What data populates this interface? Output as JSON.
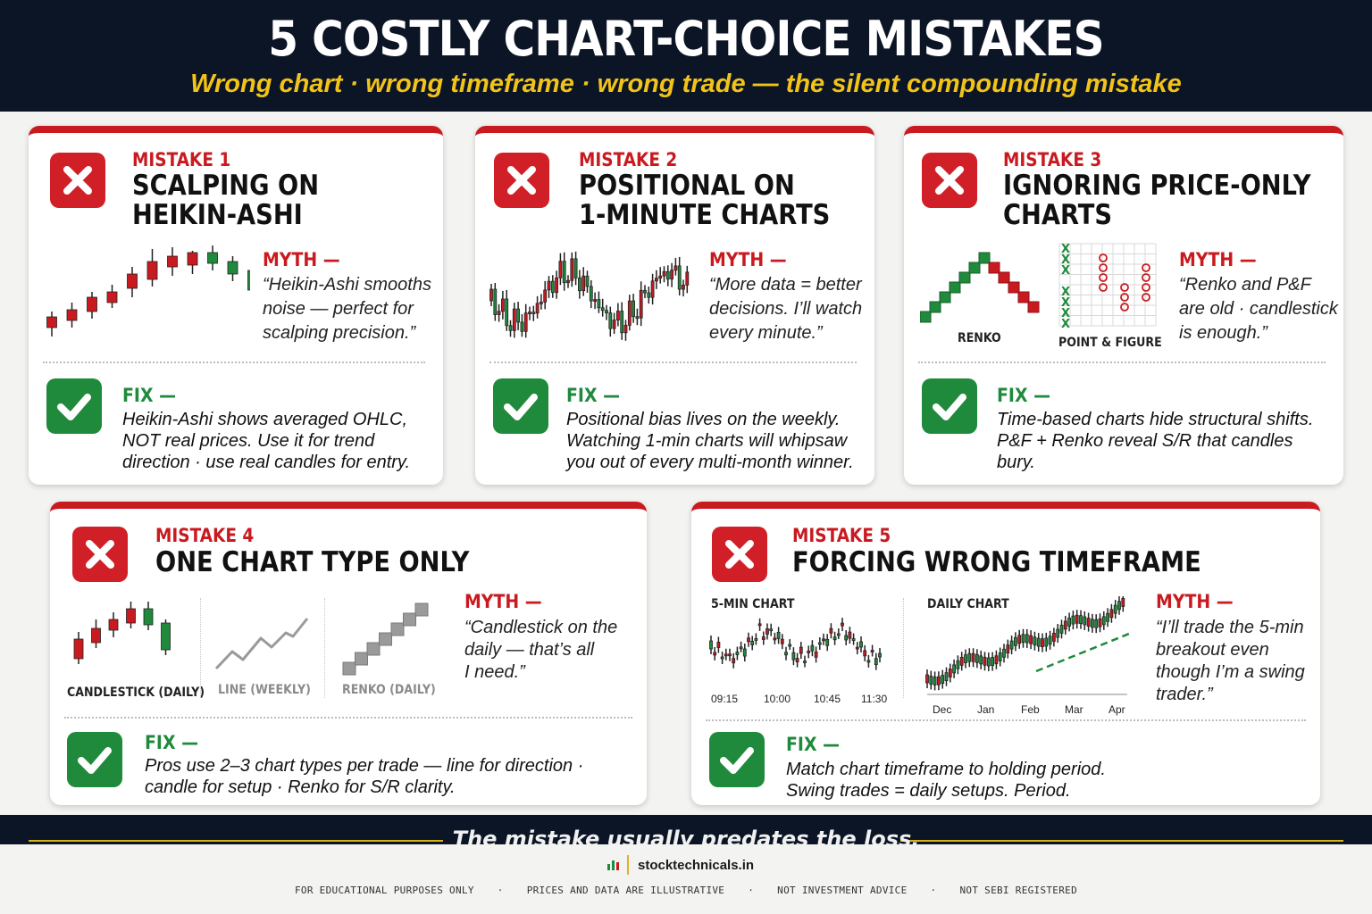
{
  "header": {
    "title": "5 COSTLY CHART-CHOICE MISTAKES",
    "subtitle": "Wrong chart · wrong timeframe · wrong trade — the silent compounding mistake"
  },
  "mistakes": [
    {
      "label": "MISTAKE 1",
      "title_line1": "SCALPING ON",
      "title_line2": "HEIKIN-ASHI",
      "myth_heading": "MYTH —",
      "myth_lines": [
        "“Heikin-Ashi smooths",
        "noise — perfect for",
        "scalping precision.”"
      ],
      "fix_heading": "FIX —",
      "fix_lines": [
        "Heikin-Ashi shows averaged OHLC,",
        "NOT real prices. Use it for trend",
        "direction · use real candles for entry."
      ]
    },
    {
      "label": "MISTAKE 2",
      "title_line1": "POSITIONAL ON",
      "title_line2": "1-MINUTE CHARTS",
      "myth_heading": "MYTH —",
      "myth_lines": [
        "“More data = better",
        "decisions. I’ll watch",
        "every minute.”"
      ],
      "fix_heading": "FIX —",
      "fix_lines": [
        "Positional bias lives on the weekly.",
        "Watching 1-min charts will whipsaw",
        "you out of every multi-month winner."
      ]
    },
    {
      "label": "MISTAKE 3",
      "title_line1": "IGNORING PRICE-ONLY",
      "title_line2": "CHARTS",
      "myth_heading": "MYTH —",
      "myth_lines": [
        "“Renko and P&F",
        "are old · candlestick",
        "is enough.”"
      ],
      "fix_heading": "FIX —",
      "fix_lines": [
        "Time-based charts hide structural shifts.",
        "P&F + Renko reveal S/R that candles",
        "bury."
      ],
      "captions": [
        "RENKO",
        "POINT & FIGURE"
      ]
    },
    {
      "label": "MISTAKE 4",
      "title_line1": "ONE CHART TYPE ONLY",
      "myth_heading": "MYTH —",
      "myth_lines": [
        "“Candlestick on the",
        "daily — that’s all",
        "I need.”"
      ],
      "fix_heading": "FIX —",
      "fix_lines": [
        "Pros use 2–3 chart types per trade — line for direction ·",
        "candle for setup · Renko for S/R clarity."
      ],
      "captions": [
        "CANDLESTICK (DAILY)",
        "LINE (WEEKLY)",
        "RENKO (DAILY)"
      ]
    },
    {
      "label": "MISTAKE 5",
      "title_line1": "FORCING WRONG TIMEFRAME",
      "myth_heading": "MYTH —",
      "myth_lines": [
        "“I’ll trade the 5-min",
        "breakout even",
        "though I’m a swing",
        "trader.”"
      ],
      "fix_heading": "FIX —",
      "fix_lines": [
        "Match chart timeframe to holding period.",
        "Swing trades = daily setups. Period."
      ],
      "captions": [
        "5-MIN CHART",
        "DAILY CHART"
      ],
      "ticks_5min": [
        "09:15",
        "10:00",
        "10:45",
        "11:30"
      ],
      "ticks_daily": [
        "Dec",
        "Jan",
        "Feb",
        "Mar",
        "Apr"
      ]
    }
  ],
  "tagline": "The mistake usually predates the loss.",
  "footer": {
    "brand": "stocktechnicals.in",
    "disclaimers": [
      "FOR EDUCATIONAL PURPOSES ONLY",
      "PRICES AND DATA ARE ILLUSTRATIVE",
      "NOT INVESTMENT ADVICE",
      "NOT SEBI REGISTERED"
    ]
  },
  "colors": {
    "navy": "#0c1526",
    "gold": "#f2c318",
    "red": "#c91a20",
    "green": "#1f8a3c"
  },
  "icons": [
    "x-mark-icon",
    "check-mark-icon",
    "bar-chart-icon"
  ]
}
